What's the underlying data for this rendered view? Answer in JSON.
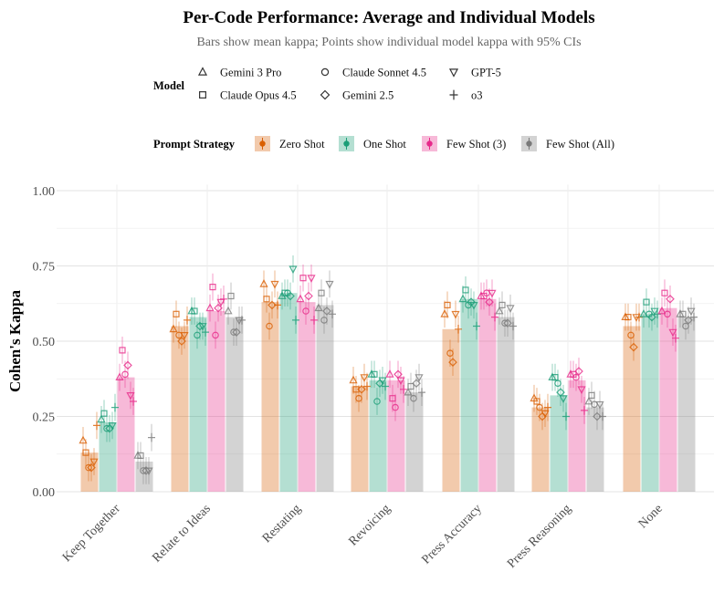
{
  "chart_data": {
    "type": "bar",
    "title": "Per-Code Performance: Average and Individual Models",
    "subtitle": "Bars show mean kappa; Points show individual model kappa with 95% CIs",
    "xlabel": "",
    "ylabel": "Cohen's Kappa",
    "ylim": [
      0,
      1.05
    ],
    "y_ticks": [
      0,
      0.25,
      0.5,
      0.75,
      1.0
    ],
    "y_tick_labels": [
      "0.00",
      "0.25",
      "0.50",
      "0.75",
      "1.00"
    ],
    "grid": true,
    "legend_placement": "top",
    "categories": [
      "Keep Together",
      "Relate to Ideas",
      "Restating",
      "Revoicing",
      "Press Accuracy",
      "Press Reasoning",
      "None"
    ],
    "model_legend_title": "Model",
    "models": [
      {
        "name": "Gemini 3 Pro",
        "marker": "triangle-up"
      },
      {
        "name": "Claude Opus 4.5",
        "marker": "square"
      },
      {
        "name": "Claude Sonnet 4.5",
        "marker": "circle"
      },
      {
        "name": "Gemini 2.5",
        "marker": "diamond"
      },
      {
        "name": "GPT-5",
        "marker": "triangle-down"
      },
      {
        "name": "o3",
        "marker": "plus"
      }
    ],
    "strategy_legend_title": "Prompt Strategy",
    "series": [
      {
        "name": "Zero Shot",
        "color": "#d95f02",
        "values": [
          0.13,
          0.55,
          0.63,
          0.35,
          0.54,
          0.28,
          0.55
        ],
        "points": [
          [
            0.17,
            0.13,
            0.08,
            0.08,
            0.1,
            0.22
          ],
          [
            0.54,
            0.59,
            0.52,
            0.5,
            0.52,
            0.57
          ],
          [
            0.69,
            0.64,
            0.55,
            0.62,
            0.69,
            0.62
          ],
          [
            0.37,
            0.34,
            0.31,
            0.34,
            0.38,
            0.35
          ],
          [
            0.59,
            0.62,
            0.46,
            0.43,
            0.59,
            0.54
          ],
          [
            0.31,
            0.3,
            0.28,
            0.25,
            0.26,
            0.28
          ],
          [
            0.58,
            0.58,
            0.52,
            0.48,
            0.58,
            0.58
          ]
        ]
      },
      {
        "name": "One Shot",
        "color": "#1b9e77",
        "values": [
          0.23,
          0.58,
          0.66,
          0.37,
          0.64,
          0.32,
          0.59
        ],
        "points": [
          [
            0.24,
            0.26,
            0.21,
            0.21,
            0.22,
            0.28
          ],
          [
            0.6,
            0.6,
            0.52,
            0.55,
            0.55,
            0.53
          ],
          [
            0.65,
            0.66,
            0.66,
            0.65,
            0.74,
            0.57
          ],
          [
            0.39,
            0.39,
            0.3,
            0.36,
            0.37,
            0.35
          ],
          [
            0.64,
            0.67,
            0.62,
            0.63,
            0.62,
            0.55
          ],
          [
            0.38,
            0.38,
            0.36,
            0.33,
            0.31,
            0.25
          ],
          [
            0.59,
            0.63,
            0.59,
            0.58,
            0.6,
            0.59
          ]
        ]
      },
      {
        "name": "Few Shot (3)",
        "color": "#e7298a",
        "values": [
          0.38,
          0.6,
          0.63,
          0.37,
          0.64,
          0.37,
          0.61
        ],
        "points": [
          [
            0.38,
            0.47,
            0.39,
            0.42,
            0.32,
            0.3
          ],
          [
            0.61,
            0.68,
            0.52,
            0.61,
            0.63,
            0.64
          ],
          [
            0.64,
            0.71,
            0.6,
            0.65,
            0.71,
            0.57
          ],
          [
            0.39,
            0.31,
            0.28,
            0.39,
            0.37,
            0.34
          ],
          [
            0.65,
            0.65,
            0.66,
            0.63,
            0.66,
            0.58
          ],
          [
            0.39,
            0.39,
            0.38,
            0.4,
            0.34,
            0.27
          ],
          [
            0.6,
            0.66,
            0.59,
            0.64,
            0.53,
            0.51
          ]
        ]
      },
      {
        "name": "Few Shot (All)",
        "color": "#7a7a7a",
        "values": [
          0.1,
          0.58,
          0.62,
          0.33,
          0.58,
          0.28,
          0.58
        ],
        "points": [
          [
            0.12,
            0.12,
            0.07,
            0.07,
            0.07,
            0.18
          ],
          [
            0.6,
            0.65,
            0.53,
            0.53,
            0.57,
            0.57
          ],
          [
            0.61,
            0.66,
            0.57,
            0.6,
            0.69,
            0.59
          ],
          [
            0.33,
            0.35,
            0.31,
            0.36,
            0.38,
            0.33
          ],
          [
            0.6,
            0.62,
            0.56,
            0.56,
            0.61,
            0.55
          ],
          [
            0.3,
            0.32,
            0.29,
            0.25,
            0.29,
            0.25
          ],
          [
            0.59,
            0.59,
            0.55,
            0.57,
            0.6,
            0.58
          ]
        ]
      }
    ]
  }
}
